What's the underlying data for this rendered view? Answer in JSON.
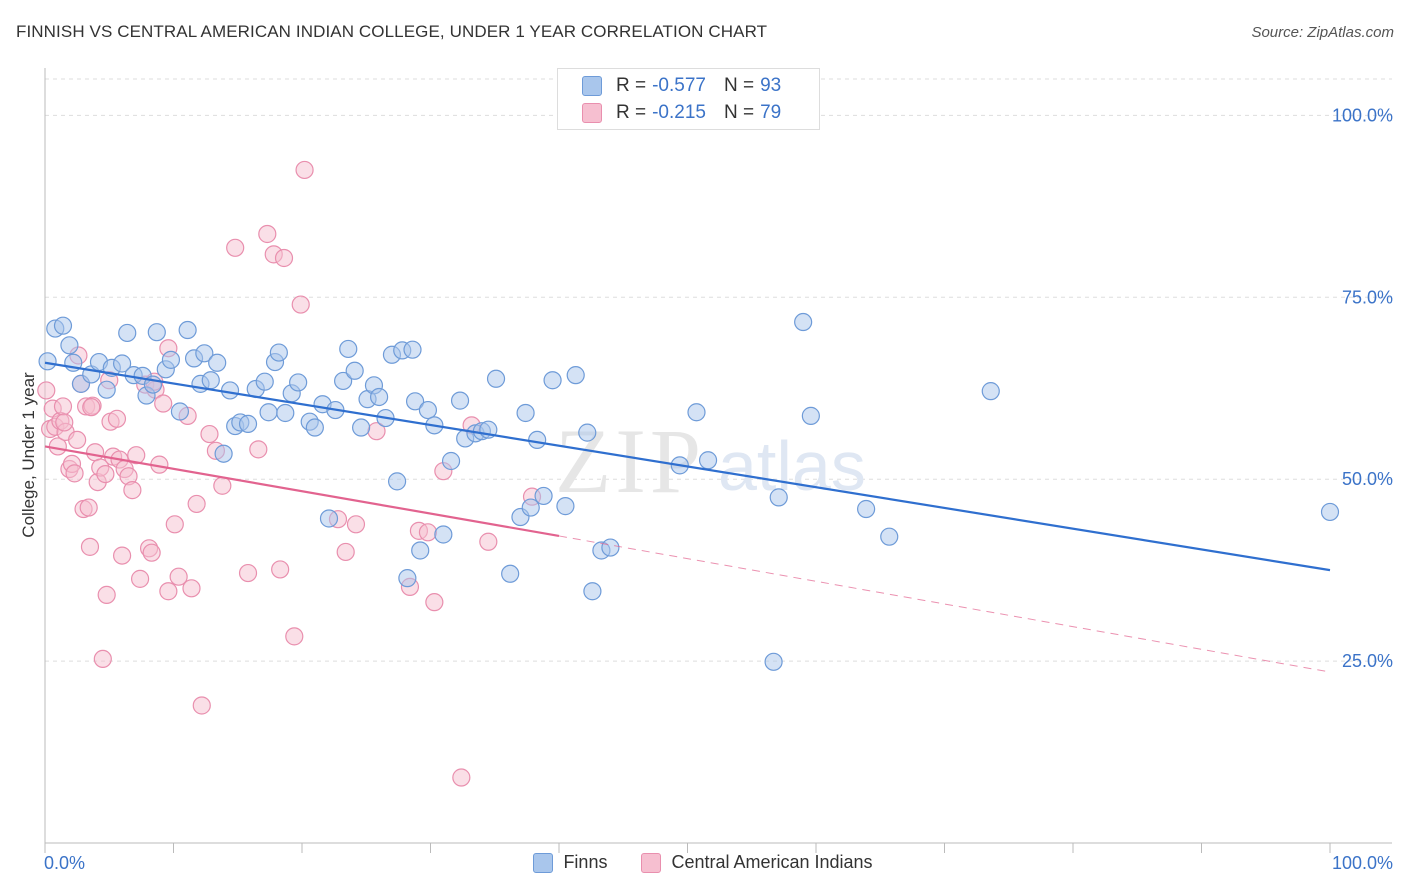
{
  "title": "FINNISH VS CENTRAL AMERICAN INDIAN COLLEGE, UNDER 1 YEAR CORRELATION CHART",
  "source": "Source: ZipAtlas.com",
  "watermark": {
    "zip": "ZIP",
    "atlas": "atlas"
  },
  "legend_top": [
    {
      "r_label": "R =",
      "r_value": "-0.577",
      "n_label": "N =",
      "n_value": "93"
    },
    {
      "r_label": "R =",
      "r_value": "-0.215",
      "n_label": "N =",
      "n_value": "79"
    }
  ],
  "legend_bottom": [
    "Finns",
    "Central American Indians"
  ],
  "colors": {
    "finns_fill": "#a9c6ec",
    "finns_stroke": "#6e9bd8",
    "finns_line": "#2f6fcf",
    "cai_fill": "#f6bfd0",
    "cai_stroke": "#e98fae",
    "cai_line": "#e2638f",
    "grid": "#dddddd",
    "tick_label": "#3b73c8"
  },
  "chart_data": {
    "type": "scatter",
    "title": "FINNISH VS CENTRAL AMERICAN INDIAN COLLEGE, UNDER 1 YEAR CORRELATION CHART",
    "xlabel": "",
    "ylabel": "College, Under 1 year",
    "xlim": [
      0,
      100
    ],
    "ylim": [
      0,
      105
    ],
    "x_tick_labels": [
      "0.0%",
      "100.0%"
    ],
    "y_ticks": [
      25,
      50,
      75,
      100
    ],
    "y_tick_labels": [
      "25.0%",
      "50.0%",
      "75.0%",
      "100.0%"
    ],
    "grid": true,
    "legend_position": "top-center",
    "series": [
      {
        "name": "Finns",
        "r": -0.577,
        "n": 93,
        "trend": {
          "x": [
            0,
            100
          ],
          "y": [
            66.0,
            37.5
          ]
        },
        "points": [
          [
            0.2,
            66.2
          ],
          [
            0.8,
            70.7
          ],
          [
            1.4,
            71.1
          ],
          [
            1.9,
            68.4
          ],
          [
            2.2,
            66.0
          ],
          [
            2.8,
            63.1
          ],
          [
            3.6,
            64.4
          ],
          [
            4.2,
            66.1
          ],
          [
            4.8,
            62.3
          ],
          [
            5.2,
            65.3
          ],
          [
            6.0,
            65.9
          ],
          [
            6.4,
            70.1
          ],
          [
            6.9,
            64.3
          ],
          [
            7.6,
            64.2
          ],
          [
            7.9,
            61.5
          ],
          [
            8.4,
            63.0
          ],
          [
            8.7,
            70.2
          ],
          [
            9.4,
            65.1
          ],
          [
            9.8,
            66.4
          ],
          [
            10.5,
            59.3
          ],
          [
            11.1,
            70.5
          ],
          [
            11.6,
            66.6
          ],
          [
            12.1,
            63.1
          ],
          [
            12.4,
            67.3
          ],
          [
            12.9,
            63.6
          ],
          [
            13.4,
            66.0
          ],
          [
            13.9,
            53.5
          ],
          [
            14.4,
            62.2
          ],
          [
            14.8,
            57.3
          ],
          [
            15.2,
            57.8
          ],
          [
            15.8,
            57.6
          ],
          [
            16.4,
            62.4
          ],
          [
            17.1,
            63.4
          ],
          [
            17.4,
            59.2
          ],
          [
            17.9,
            66.1
          ],
          [
            18.2,
            67.4
          ],
          [
            18.7,
            59.1
          ],
          [
            19.2,
            61.8
          ],
          [
            19.7,
            63.3
          ],
          [
            20.6,
            57.9
          ],
          [
            21.0,
            57.1
          ],
          [
            21.6,
            60.3
          ],
          [
            22.1,
            44.6
          ],
          [
            22.6,
            59.5
          ],
          [
            23.2,
            63.5
          ],
          [
            23.6,
            67.9
          ],
          [
            24.1,
            64.9
          ],
          [
            24.6,
            57.1
          ],
          [
            25.1,
            61.0
          ],
          [
            25.6,
            62.9
          ],
          [
            26.0,
            61.3
          ],
          [
            26.5,
            58.4
          ],
          [
            27.0,
            67.1
          ],
          [
            27.4,
            49.7
          ],
          [
            27.8,
            67.7
          ],
          [
            28.2,
            36.4
          ],
          [
            28.6,
            67.8
          ],
          [
            28.8,
            60.7
          ],
          [
            29.2,
            40.2
          ],
          [
            29.8,
            59.5
          ],
          [
            30.3,
            57.4
          ],
          [
            31.0,
            42.4
          ],
          [
            31.6,
            52.5
          ],
          [
            32.3,
            60.8
          ],
          [
            32.7,
            55.6
          ],
          [
            33.5,
            56.3
          ],
          [
            34.0,
            56.6
          ],
          [
            34.5,
            56.8
          ],
          [
            35.1,
            63.8
          ],
          [
            36.2,
            37.0
          ],
          [
            37.0,
            44.8
          ],
          [
            37.4,
            59.1
          ],
          [
            37.8,
            46.1
          ],
          [
            38.3,
            55.4
          ],
          [
            38.8,
            47.7
          ],
          [
            39.5,
            63.6
          ],
          [
            40.5,
            46.3
          ],
          [
            41.3,
            64.3
          ],
          [
            42.2,
            56.4
          ],
          [
            42.6,
            34.6
          ],
          [
            43.3,
            40.2
          ],
          [
            44.0,
            40.6
          ],
          [
            49.4,
            51.9
          ],
          [
            50.7,
            59.2
          ],
          [
            51.6,
            52.6
          ],
          [
            56.7,
            24.9
          ],
          [
            57.1,
            47.5
          ],
          [
            59.0,
            71.6
          ],
          [
            59.6,
            58.7
          ],
          [
            63.9,
            45.9
          ],
          [
            65.7,
            42.1
          ],
          [
            73.6,
            62.1
          ],
          [
            100.0,
            45.5
          ]
        ]
      },
      {
        "name": "Central American Indians",
        "r": -0.215,
        "n": 79,
        "trend": {
          "x": [
            0,
            40
          ],
          "y": [
            54.5,
            42.2
          ]
        },
        "trend_dashed": {
          "x": [
            40,
            100
          ],
          "y": [
            42.2,
            23.5
          ]
        },
        "points": [
          [
            0.1,
            62.2
          ],
          [
            0.4,
            56.9
          ],
          [
            0.6,
            59.7
          ],
          [
            0.8,
            57.2
          ],
          [
            1.0,
            54.5
          ],
          [
            1.2,
            58.0
          ],
          [
            1.4,
            60.0
          ],
          [
            1.6,
            56.5
          ],
          [
            1.9,
            51.4
          ],
          [
            2.1,
            52.1
          ],
          [
            2.3,
            50.8
          ],
          [
            2.5,
            55.4
          ],
          [
            2.8,
            63.1
          ],
          [
            3.0,
            45.9
          ],
          [
            3.2,
            60.0
          ],
          [
            3.4,
            46.1
          ],
          [
            3.5,
            40.7
          ],
          [
            3.7,
            60.1
          ],
          [
            3.9,
            53.7
          ],
          [
            4.1,
            49.6
          ],
          [
            4.3,
            51.6
          ],
          [
            4.5,
            25.3
          ],
          [
            4.7,
            50.7
          ],
          [
            4.8,
            34.1
          ],
          [
            5.0,
            63.6
          ],
          [
            5.1,
            57.9
          ],
          [
            5.3,
            53.1
          ],
          [
            5.6,
            58.3
          ],
          [
            5.8,
            52.7
          ],
          [
            6.0,
            39.5
          ],
          [
            6.2,
            51.4
          ],
          [
            6.5,
            50.4
          ],
          [
            6.8,
            48.5
          ],
          [
            7.1,
            53.3
          ],
          [
            7.4,
            36.3
          ],
          [
            7.8,
            63.0
          ],
          [
            8.1,
            40.5
          ],
          [
            8.3,
            39.9
          ],
          [
            8.6,
            62.3
          ],
          [
            8.9,
            52.0
          ],
          [
            9.2,
            60.4
          ],
          [
            9.6,
            34.6
          ],
          [
            10.1,
            43.8
          ],
          [
            10.4,
            36.6
          ],
          [
            11.1,
            58.7
          ],
          [
            11.4,
            35.0
          ],
          [
            11.8,
            46.6
          ],
          [
            12.2,
            18.9
          ],
          [
            12.8,
            56.2
          ],
          [
            13.3,
            53.9
          ],
          [
            13.8,
            49.1
          ],
          [
            14.8,
            81.8
          ],
          [
            15.8,
            37.1
          ],
          [
            16.6,
            54.1
          ],
          [
            17.3,
            83.7
          ],
          [
            17.8,
            80.9
          ],
          [
            18.3,
            37.6
          ],
          [
            18.6,
            80.4
          ],
          [
            19.4,
            28.4
          ],
          [
            19.9,
            74.0
          ],
          [
            20.2,
            92.5
          ],
          [
            22.8,
            44.5
          ],
          [
            23.4,
            40.0
          ],
          [
            24.2,
            43.8
          ],
          [
            25.8,
            56.6
          ],
          [
            28.4,
            35.2
          ],
          [
            29.1,
            42.9
          ],
          [
            29.8,
            42.7
          ],
          [
            30.3,
            33.1
          ],
          [
            31.0,
            51.1
          ],
          [
            32.4,
            9.0
          ],
          [
            33.2,
            57.4
          ],
          [
            34.5,
            41.4
          ],
          [
            37.9,
            47.6
          ],
          [
            1.5,
            57.8
          ],
          [
            2.6,
            67.0
          ],
          [
            3.6,
            59.9
          ],
          [
            8.5,
            63.4
          ],
          [
            9.6,
            68.0
          ]
        ]
      }
    ]
  }
}
